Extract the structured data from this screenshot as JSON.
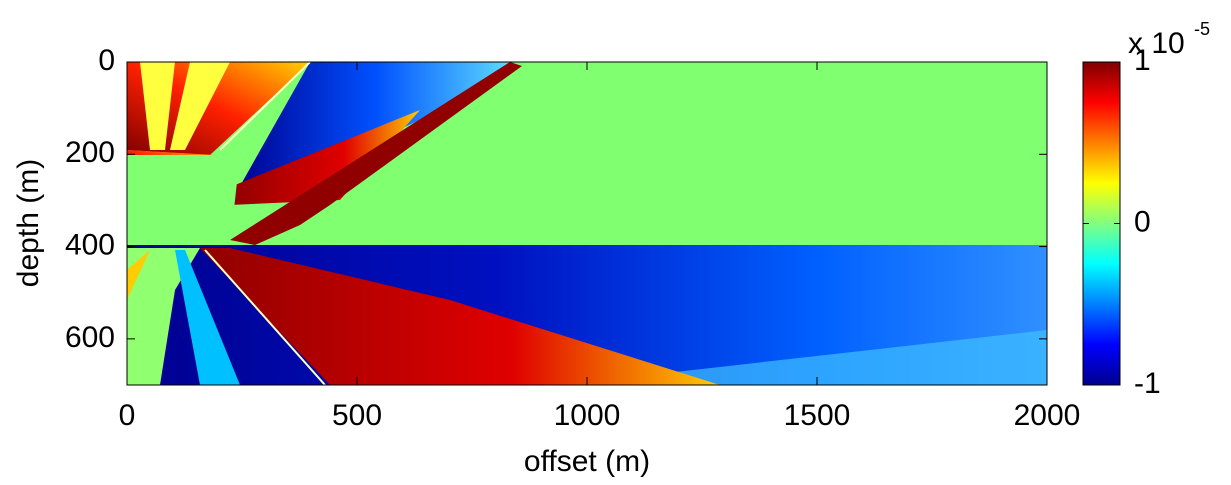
{
  "chart_data": {
    "type": "heatmap",
    "xlabel": "offset (m)",
    "ylabel": "depth (m)",
    "xlim": [
      0,
      2000
    ],
    "xticks": [
      0,
      500,
      1000,
      1500,
      2000
    ],
    "ylim": [
      0,
      700
    ],
    "yticks": [
      0,
      200,
      400,
      600
    ],
    "y_inverted": true,
    "colorbar": {
      "colormap": "jet",
      "lim": [
        -1,
        1
      ],
      "ticks": [
        -1,
        0,
        1
      ],
      "multiplier": "x 10",
      "exponent": "-5"
    }
  }
}
